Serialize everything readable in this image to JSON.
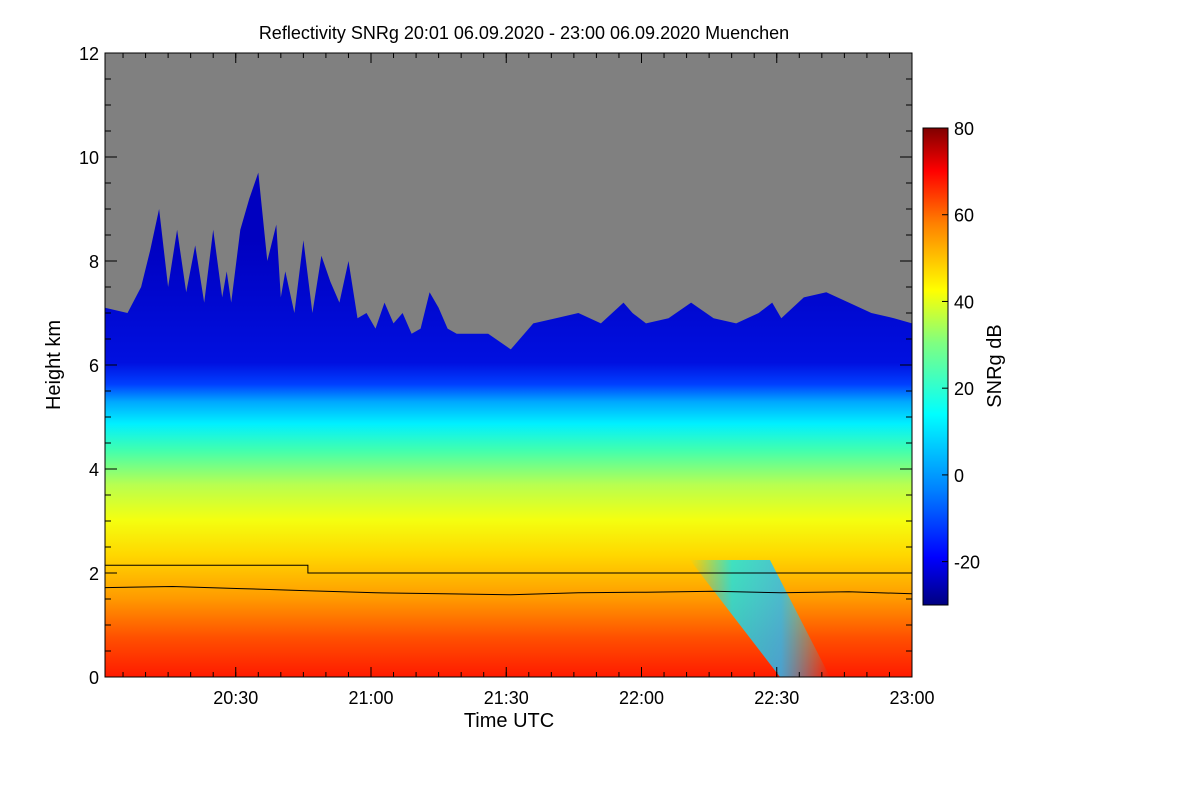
{
  "chart_data": {
    "type": "heatmap",
    "title": "Reflectivity SNRg   20:01 06.09.2020 - 23:00 06.09.2020 Muenchen",
    "xlabel": "Time UTC",
    "ylabel": "Height km",
    "x_range_minutes": [
      0,
      179
    ],
    "x_ticks": [
      {
        "label": "20:30",
        "minutes": 29
      },
      {
        "label": "21:00",
        "minutes": 59
      },
      {
        "label": "21:30",
        "minutes": 89
      },
      {
        "label": "22:00",
        "minutes": 119
      },
      {
        "label": "22:30",
        "minutes": 149
      },
      {
        "label": "23:00",
        "minutes": 179
      }
    ],
    "ylim": [
      0,
      12
    ],
    "y_ticks": [
      0,
      2,
      4,
      6,
      8,
      10,
      12
    ],
    "colorbar": {
      "label": "SNRg dB",
      "range": [
        -30,
        80
      ],
      "ticks": [
        -20,
        0,
        20,
        40,
        60,
        80
      ]
    },
    "no_signal_color": "#808080",
    "cloud_top_km": {
      "minutes": [
        0,
        5,
        8,
        10,
        12,
        14,
        16,
        18,
        20,
        22,
        24,
        26,
        27,
        28,
        30,
        32,
        34,
        36,
        38,
        39,
        40,
        42,
        44,
        46,
        48,
        50,
        52,
        54,
        56,
        58,
        60,
        62,
        64,
        66,
        68,
        70,
        72,
        74,
        76,
        78,
        80,
        85,
        90,
        95,
        100,
        105,
        110,
        115,
        117,
        120,
        125,
        130,
        135,
        140,
        145,
        148,
        150,
        155,
        160,
        165,
        170,
        175,
        179
      ],
      "heights": [
        7.1,
        7.0,
        7.5,
        8.2,
        9.0,
        7.5,
        8.6,
        7.4,
        8.3,
        7.2,
        8.6,
        7.3,
        7.8,
        7.2,
        8.6,
        9.2,
        9.7,
        8.0,
        8.7,
        7.3,
        7.8,
        7.0,
        8.4,
        7.0,
        8.1,
        7.6,
        7.2,
        8.0,
        6.9,
        7.0,
        6.7,
        7.2,
        6.8,
        7.0,
        6.6,
        6.7,
        7.4,
        7.1,
        6.7,
        6.6,
        6.6,
        6.6,
        6.3,
        6.8,
        6.9,
        7.0,
        6.8,
        7.2,
        7.0,
        6.8,
        6.9,
        7.2,
        6.9,
        6.8,
        7.0,
        7.2,
        6.9,
        7.3,
        7.4,
        7.2,
        7.0,
        6.9,
        6.8
      ]
    },
    "reference_lines": [
      {
        "name": "upper boundary line",
        "minutes": [
          0,
          45,
          45,
          179
        ],
        "heights_km": [
          2.15,
          2.15,
          2.0,
          2.0
        ]
      },
      {
        "name": "melting layer line",
        "minutes": [
          0,
          15,
          30,
          45,
          60,
          75,
          90,
          105,
          120,
          135,
          150,
          165,
          179
        ],
        "heights_km": [
          1.72,
          1.74,
          1.7,
          1.66,
          1.62,
          1.6,
          1.58,
          1.62,
          1.63,
          1.65,
          1.62,
          1.64,
          1.6
        ]
      }
    ]
  }
}
